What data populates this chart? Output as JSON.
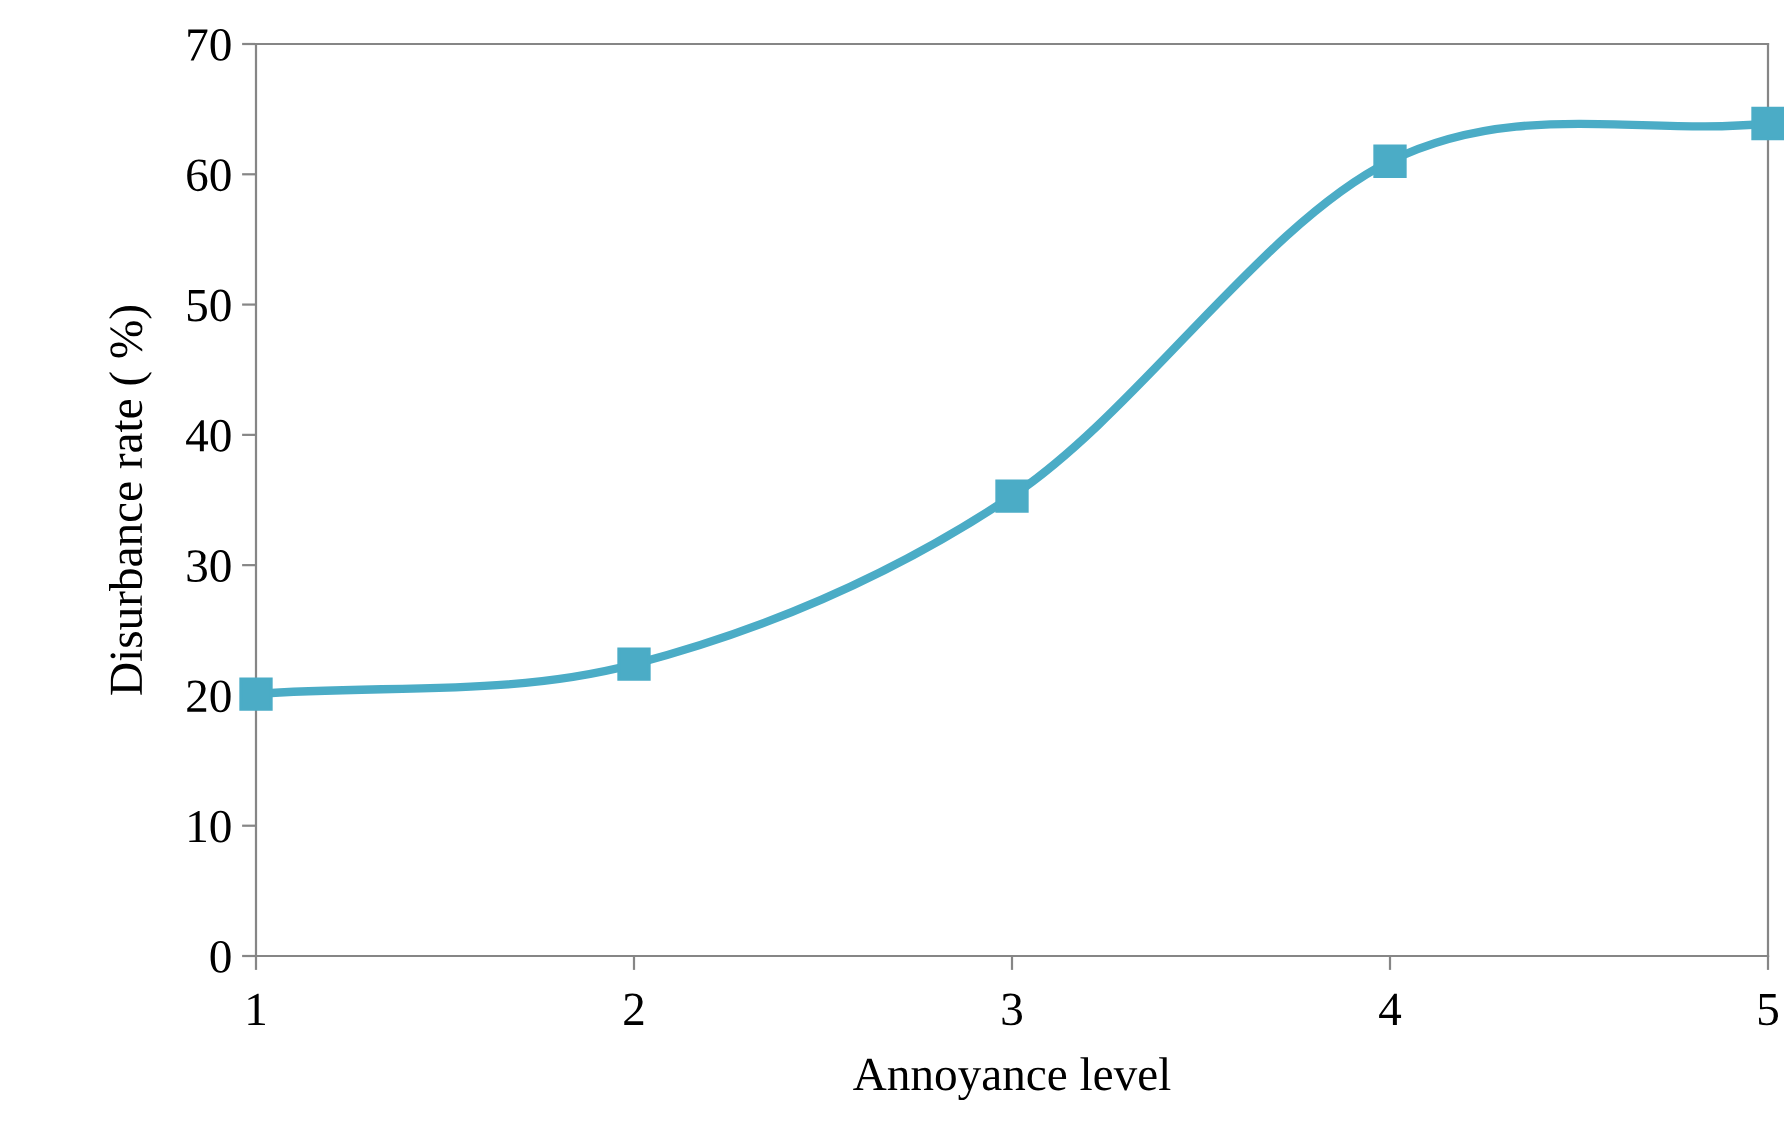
{
  "chart_data": {
    "type": "line",
    "xlabel": "Annoyance level",
    "ylabel": "Disurbance rate ( %)",
    "x": [
      1,
      2,
      3,
      4,
      5
    ],
    "series": [
      {
        "color": "#4bacc6",
        "values": [
          20.1,
          22.4,
          35.3,
          61.0,
          63.9
        ]
      }
    ],
    "xlim": [
      1,
      5
    ],
    "xticks": [
      1,
      2,
      3,
      4,
      5
    ],
    "ylim": [
      0,
      70
    ],
    "yticks": [
      0,
      10,
      20,
      30,
      40,
      50,
      60,
      70
    ],
    "marker": "square",
    "line_style": "solid",
    "grid": false,
    "legend": false
  }
}
